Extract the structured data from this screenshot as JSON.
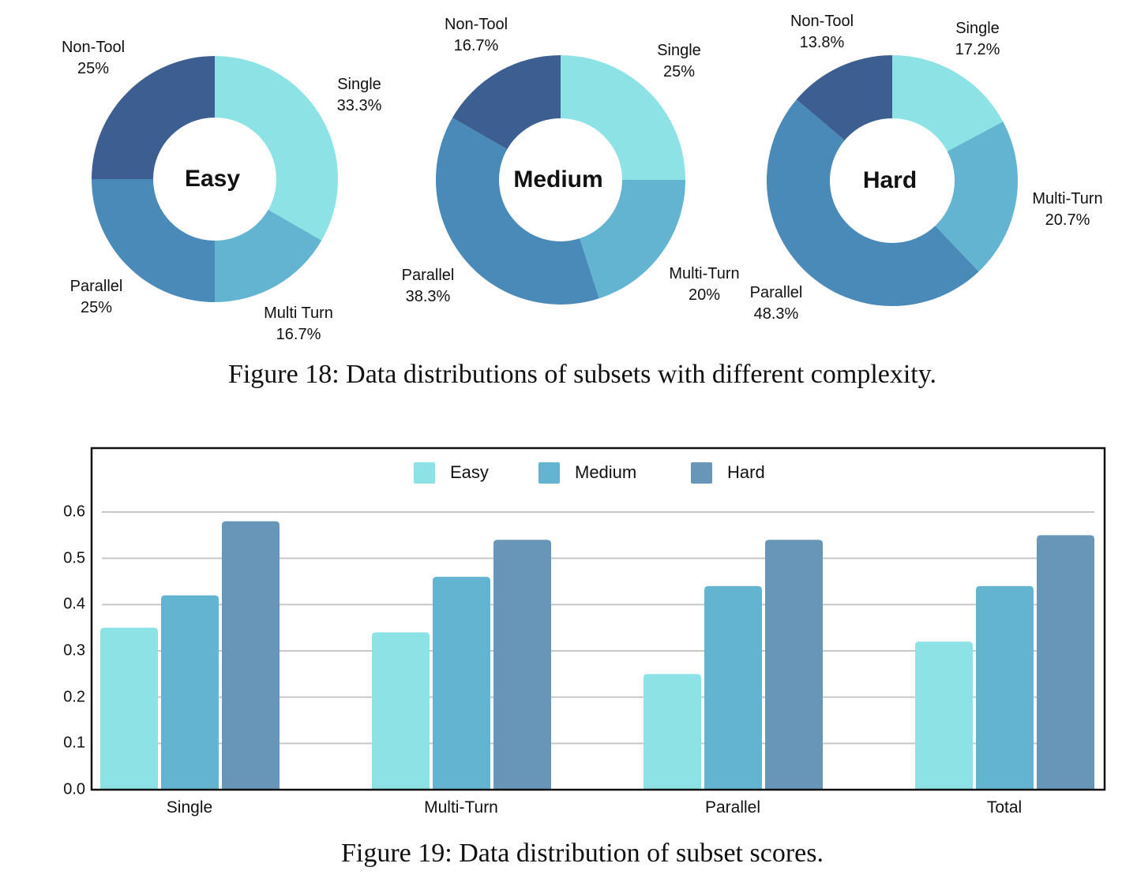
{
  "chart_data": [
    {
      "type": "pie",
      "variant": "donut",
      "center_label": "Easy",
      "categories": [
        "Single",
        "Multi Turn",
        "Parallel",
        "Non-Tool"
      ],
      "values": [
        33.3,
        16.7,
        25,
        25
      ],
      "labels": [
        "33.3%",
        "16.7%",
        "25%",
        "25%"
      ],
      "colors": [
        "#8de2e6",
        "#63b4d1",
        "#4a8ab8",
        "#3d5e91"
      ]
    },
    {
      "type": "pie",
      "variant": "donut",
      "center_label": "Medium",
      "categories": [
        "Single",
        "Multi-Turn",
        "Parallel",
        "Non-Tool"
      ],
      "values": [
        25,
        20,
        38.3,
        16.7
      ],
      "labels": [
        "25%",
        "20%",
        "38.3%",
        "16.7%"
      ],
      "colors": [
        "#8de2e6",
        "#63b4d1",
        "#4a8ab8",
        "#3d5e91"
      ]
    },
    {
      "type": "pie",
      "variant": "donut",
      "center_label": "Hard",
      "categories": [
        "Single",
        "Multi-Turn",
        "Parallel",
        "Non-Tool"
      ],
      "values": [
        17.2,
        20.7,
        48.3,
        13.8
      ],
      "labels": [
        "17.2%",
        "20.7%",
        "48.3%",
        "13.8%"
      ],
      "colors": [
        "#8de2e6",
        "#63b4d1",
        "#4a8ab8",
        "#3d5e91"
      ]
    },
    {
      "type": "bar",
      "categories": [
        "Single",
        "Multi-Turn",
        "Parallel",
        "Total"
      ],
      "series": [
        {
          "name": "Easy",
          "values": [
            0.35,
            0.34,
            0.25,
            0.32
          ],
          "color": "#8de2e6"
        },
        {
          "name": "Medium",
          "values": [
            0.42,
            0.46,
            0.44,
            0.44
          ],
          "color": "#63b4d1"
        },
        {
          "name": "Hard",
          "values": [
            0.58,
            0.54,
            0.54,
            0.55
          ],
          "color": "#6796b8"
        }
      ],
      "yticks": [
        "0.0",
        "0.1",
        "0.2",
        "0.3",
        "0.4",
        "0.5",
        "0.6"
      ],
      "ylim": [
        0,
        0.74
      ],
      "grid": true,
      "legend": "top-center"
    }
  ],
  "captions": {
    "fig18": "Figure 18: Data distributions of subsets with different complexity.",
    "fig19": "Figure 19: Data distribution of subset scores."
  }
}
